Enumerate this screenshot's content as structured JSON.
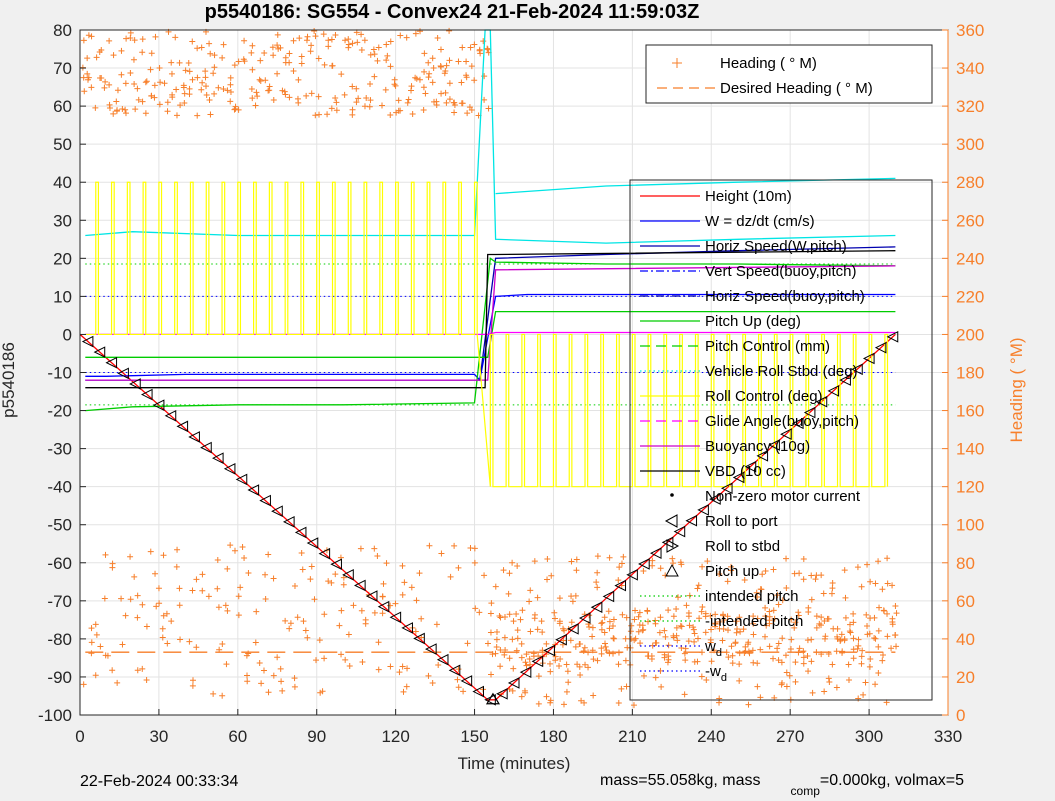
{
  "chart_data": {
    "type": "line",
    "title": "p5540186: SG554 - Convex24 21-Feb-2024 11:59:03Z",
    "xlabel": "Time (minutes)",
    "ylabel": "p5540186",
    "y2label": "Heading (  °M)",
    "xlim": [
      0,
      330
    ],
    "ylim": [
      -100,
      80
    ],
    "y2lim": [
      0,
      360
    ],
    "xticks": [
      "0",
      "30",
      "60",
      "90",
      "120",
      "150",
      "180",
      "210",
      "240",
      "270",
      "300",
      "330"
    ],
    "yticks": [
      "-100",
      "-90",
      "-80",
      "-70",
      "-60",
      "-50",
      "-40",
      "-30",
      "-20",
      "-10",
      "0",
      "10",
      "20",
      "30",
      "40",
      "50",
      "60",
      "70",
      "80"
    ],
    "y2ticks": [
      "0",
      "20",
      "40",
      "60",
      "80",
      "100",
      "120",
      "140",
      "160",
      "180",
      "200",
      "220",
      "240",
      "260",
      "280",
      "300",
      "320",
      "340",
      "360"
    ],
    "grid": true,
    "legend_heading": [
      {
        "name": "Heading (  ° M)",
        "color": "#f77f2a",
        "style": "plus"
      },
      {
        "name": "Desired Heading (   ° M)",
        "color": "#f77f2a",
        "style": "dash"
      }
    ],
    "legend_main": [
      {
        "name": "Height (10m)",
        "color": "#ff0000",
        "style": "solid"
      },
      {
        "name": "W = dz/dt (cm/s)",
        "color": "#0000ff",
        "style": "solid"
      },
      {
        "name": "Horiz Speed(W,pitch)",
        "color": "#0000b0",
        "style": "solid"
      },
      {
        "name": "Vert Speed(buoy,pitch)",
        "color": "#0000ff",
        "style": "dashdot"
      },
      {
        "name": "Horiz Speed(buoy,pitch)",
        "color": "#0000b0",
        "style": "dashdot"
      },
      {
        "name": "Pitch Up (deg)",
        "color": "#00cc00",
        "style": "solid"
      },
      {
        "name": "Pitch Control (mm)",
        "color": "#00cc00",
        "style": "dash"
      },
      {
        "name": "Vehicle Roll Stbd (deg)",
        "color": "#00e5e5",
        "style": "dot"
      },
      {
        "name": "Roll Control (deg)",
        "color": "#ffff00",
        "style": "solid"
      },
      {
        "name": "Glide Angle(buoy,pitch)",
        "color": "#ff00ff",
        "style": "dash"
      },
      {
        "name": "Buoyancy (10g)",
        "color": "#cc00cc",
        "style": "solid"
      },
      {
        "name": "VBD (10 cc)",
        "color": "#000000",
        "style": "solid"
      },
      {
        "name": "Non-zero motor current",
        "color": "#000000",
        "style": "dotmark"
      },
      {
        "name": "Roll to port",
        "color": "#000000",
        "style": "tri-left"
      },
      {
        "name": "Roll to stbd",
        "color": "#000000",
        "style": "tri-right"
      },
      {
        "name": "Pitch up",
        "color": "#000000",
        "style": "tri-up"
      },
      {
        "name": "intended pitch",
        "color": "#00cc00",
        "style": "dot"
      },
      {
        "name": "-intended pitch",
        "color": "#00cc00",
        "style": "dot"
      },
      {
        "name": "w",
        "sub": "d",
        "color": "#0000ff",
        "style": "dot"
      },
      {
        "name": "-w",
        "sub": "d",
        "color": "#0000ff",
        "style": "dot"
      }
    ],
    "series": [
      {
        "name": "Height (10m)",
        "color": "#ff0000",
        "x": [
          0,
          155,
          158,
          210,
          310
        ],
        "y": [
          0,
          -96,
          -96,
          -63,
          0
        ]
      },
      {
        "name": "W = dz/dt (cm/s)",
        "color": "#0000ff",
        "x": [
          2,
          10,
          40,
          80,
          120,
          150,
          152,
          158,
          170,
          200,
          250,
          300,
          310
        ],
        "y": [
          -11,
          -11,
          -10.5,
          -10.5,
          -10.5,
          -10.5,
          -12,
          10,
          10.5,
          10.5,
          10.5,
          10.5,
          10.5
        ]
      },
      {
        "name": "Horiz Speed(W,pitch)",
        "color": "#0000b0",
        "x": [
          2,
          150,
          152,
          158,
          200,
          250,
          310
        ],
        "y": [
          -12,
          -12,
          -12,
          20,
          21,
          22,
          23
        ]
      },
      {
        "name": "Pitch Up (deg)",
        "color": "#00cc00",
        "x": [
          2,
          20,
          60,
          100,
          150,
          156,
          158,
          200,
          250,
          310
        ],
        "y": [
          -20,
          -19,
          -18.5,
          -18.5,
          -18,
          20,
          19,
          18.5,
          18.5,
          18
        ]
      },
      {
        "name": "Pitch Control (mm)",
        "color": "#00cc00",
        "x": [
          2,
          155,
          158,
          310
        ],
        "y": [
          -6,
          -6,
          6,
          6
        ]
      },
      {
        "name": "Vehicle Roll Stbd (deg)",
        "color": "#00e5e5",
        "x": [
          2,
          20,
          60,
          100,
          150,
          154,
          156,
          158,
          200,
          250,
          310
        ],
        "y": [
          26,
          27,
          26,
          26,
          26,
          80,
          80,
          25,
          24,
          25,
          26
        ]
      },
      {
        "name": "Vehicle Roll Stbd upper (deg)",
        "color": "#00e5e5",
        "x": [
          158,
          200,
          250,
          310
        ],
        "y": [
          37,
          39,
          40,
          41
        ]
      },
      {
        "name": "Glide Angle(buoy,pitch)",
        "color": "#ff00ff",
        "x": [
          2,
          155,
          158,
          310
        ],
        "y": [
          0,
          0,
          0.5,
          0.5
        ]
      },
      {
        "name": "Buoyancy (10g)",
        "color": "#cc00cc",
        "x": [
          2,
          155,
          158,
          310
        ],
        "y": [
          -12,
          -12,
          17,
          18
        ]
      },
      {
        "name": "VBD (10 cc)",
        "color": "#000000",
        "x": [
          2,
          154,
          155,
          158,
          310
        ],
        "y": [
          -14,
          -14,
          21,
          21,
          22
        ]
      },
      {
        "name": "Desired Heading (   ° M)",
        "color": "#f77f2a",
        "x": [
          2,
          155,
          158,
          310
        ],
        "y2": [
          33,
          33,
          33,
          33
        ]
      }
    ],
    "reference_lines": [
      {
        "name": "intended pitch",
        "y": 18.5
      },
      {
        "name": "-intended pitch",
        "y": -18.5
      },
      {
        "name": "w",
        "y": 10
      },
      {
        "name": "-w",
        "y": -10
      }
    ]
  },
  "footer": {
    "timestamp": "22-Feb-2024 00:33:34",
    "mass": "mass=55.058kg, mass",
    "mass_comp_sub": "comp",
    "mass_comp_value": "=0.000kg, volmax=5"
  }
}
